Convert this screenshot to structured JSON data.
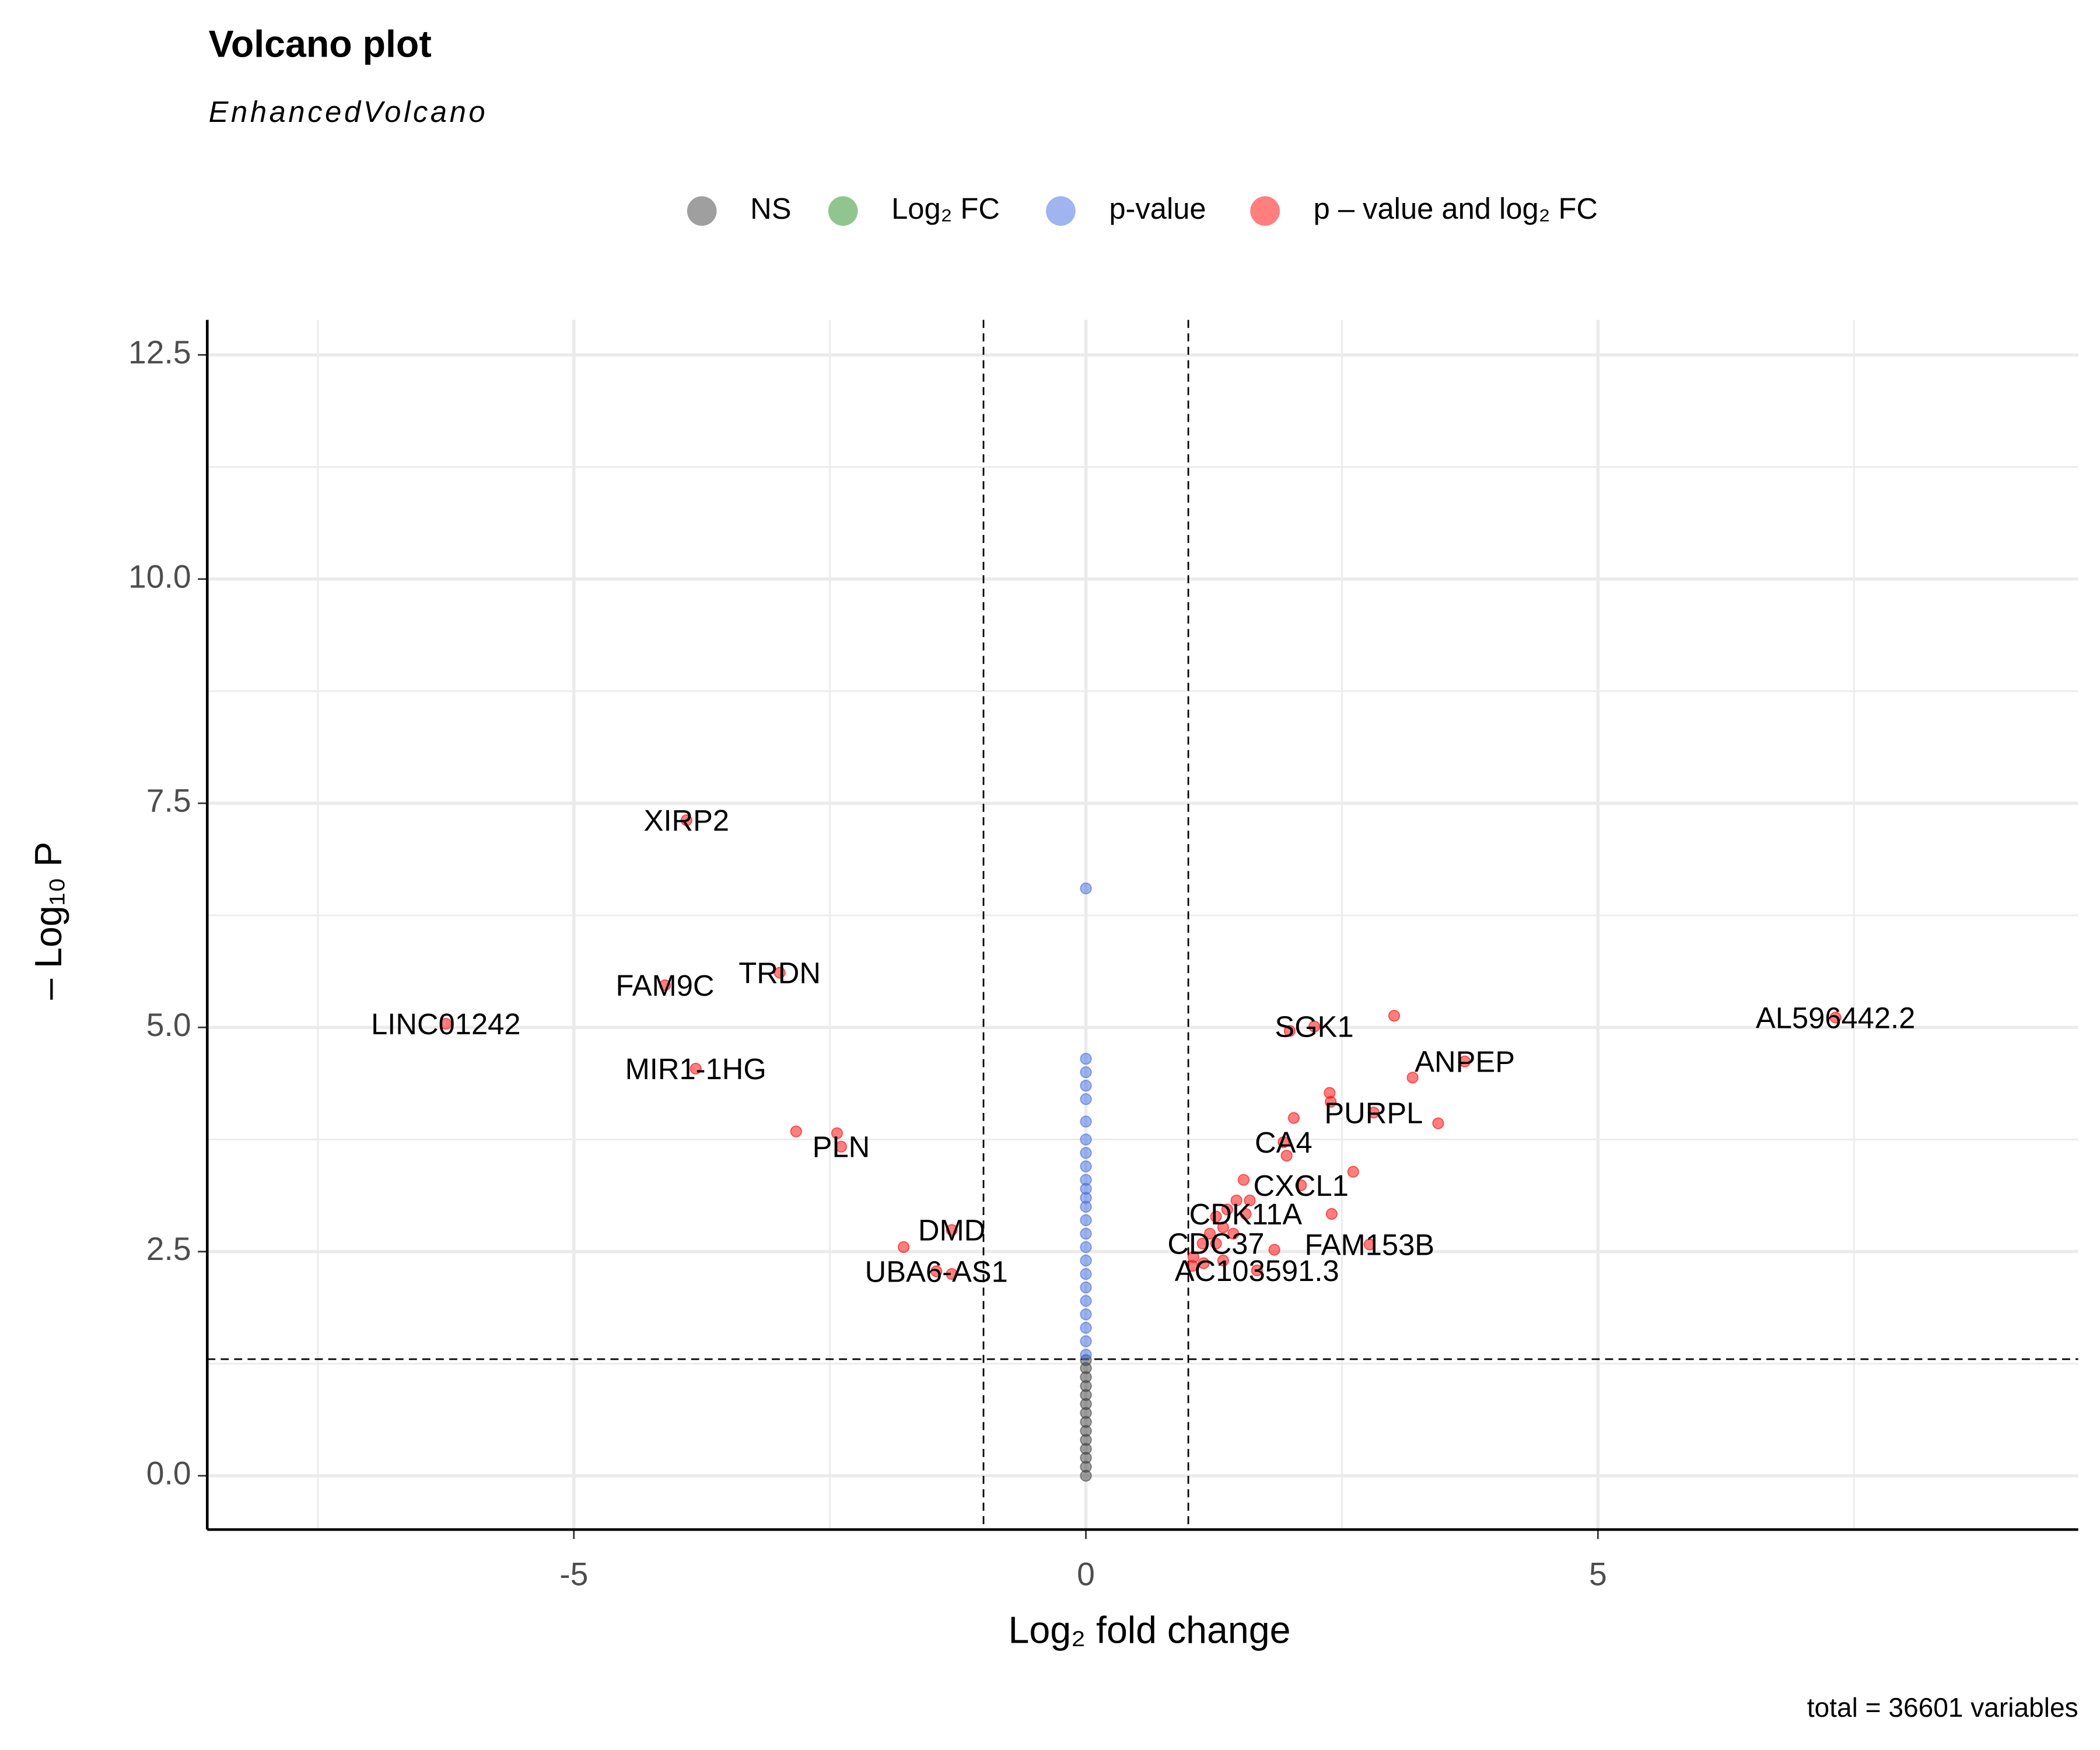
{
  "chart_data": {
    "type": "scatter",
    "title": "Volcano plot",
    "subtitle": "EnhancedVolcano",
    "x_label": "Log₂ fold change",
    "y_label": "– Log₁₀ P",
    "caption": "total = 36601 variables",
    "xlim": [
      -8.58,
      9.69
    ],
    "ylim": [
      -0.6,
      12.89
    ],
    "xticks": [
      -5,
      0,
      5
    ],
    "yticks": [
      {
        "value": 0,
        "label": "0.0"
      },
      {
        "value": 2.5,
        "label": "2.5"
      },
      {
        "value": 5,
        "label": "5.0"
      },
      {
        "value": 7.5,
        "label": "7.5"
      },
      {
        "value": 10,
        "label": "10.0"
      },
      {
        "value": 12.5,
        "label": "12.5"
      }
    ],
    "x_minor_grid": [
      -7.5,
      -2.5,
      2.5,
      7.5
    ],
    "y_minor_grid": [
      1.25,
      3.75,
      6.25,
      8.75,
      11.25
    ],
    "grid": true,
    "fc_cutoff_lines": [
      -1,
      1
    ],
    "p_cutoff_line": 1.3,
    "legend_position": "top",
    "series": [
      {
        "name": "NS",
        "color": "#404040",
        "x": [
          0,
          0,
          0,
          0,
          0,
          0,
          0,
          0,
          0,
          0,
          0,
          0,
          0,
          0
        ],
        "values": [
          0,
          0.1,
          0.2,
          0.3,
          0.4,
          0.5,
          0.6,
          0.7,
          0.8,
          0.9,
          1.0,
          1.1,
          1.2,
          1.29
        ]
      },
      {
        "name": "Log₂ FC",
        "color": "#228b22",
        "x": [],
        "values": []
      },
      {
        "name": "p-value",
        "color": "#4169e1",
        "x": [
          0,
          0,
          0,
          0,
          0,
          0,
          0,
          0,
          0,
          0,
          0,
          0,
          0,
          0,
          0,
          0,
          0,
          0,
          0,
          0,
          0,
          0,
          0,
          0
        ],
        "values": [
          1.35,
          1.5,
          1.65,
          1.8,
          1.95,
          2.1,
          2.25,
          2.4,
          2.55,
          2.7,
          2.85,
          3.0,
          3.1,
          3.2,
          3.3,
          3.45,
          3.6,
          3.75,
          3.95,
          4.2,
          4.35,
          4.5,
          4.65,
          6.55
        ]
      },
      {
        "name": "p – value and log₂ FC",
        "color": "#ff0000",
        "x": [
          -3.9,
          -2.99,
          -4.11,
          -6.25,
          -3.81,
          -2.83,
          -2.43,
          -2.39,
          -1.78,
          -1.31,
          -1.31,
          -1.46,
          7.32,
          1.99,
          2.23,
          3.01,
          3.7,
          3.19,
          2.38,
          2.39,
          2.81,
          3.44,
          2.03,
          1.93,
          1.96,
          2.61,
          2.1,
          1.54,
          2.4,
          1.47,
          1.38,
          1.27,
          1.56,
          1.34,
          1.44,
          1.21,
          1.14,
          1.27,
          1.6,
          1.84,
          1.05,
          1.15,
          1.34,
          2.77,
          1.67,
          1.04
        ],
        "values": [
          7.31,
          5.61,
          5.47,
          5.04,
          4.54,
          3.84,
          3.82,
          3.67,
          2.55,
          2.74,
          2.25,
          2.28,
          5.11,
          4.96,
          5.01,
          5.13,
          4.62,
          4.44,
          4.27,
          4.17,
          4.05,
          3.93,
          3.99,
          3.72,
          3.57,
          3.39,
          3.24,
          3.3,
          2.92,
          3.07,
          2.97,
          2.89,
          2.92,
          2.77,
          2.7,
          2.7,
          2.59,
          2.59,
          3.07,
          2.52,
          2.44,
          2.37,
          2.4,
          2.58,
          2.29,
          2.34
        ],
        "labels": [
          "XIRP2",
          "TRDN",
          "FAM9C",
          "LINC01242",
          "MIR1-1HG",
          null,
          null,
          "PLN",
          null,
          "DMD",
          null,
          "UBA6-AS1",
          "AL596442.2",
          null,
          "SGK1",
          null,
          "ANPEP",
          null,
          null,
          null,
          "PURPL",
          null,
          null,
          "CA4",
          null,
          null,
          "CXCL1",
          null,
          null,
          null,
          null,
          null,
          "CDK11A",
          null,
          null,
          null,
          null,
          "CDC37",
          null,
          null,
          null,
          null,
          null,
          "FAM153B",
          "AC103591.3",
          null
        ]
      }
    ]
  }
}
